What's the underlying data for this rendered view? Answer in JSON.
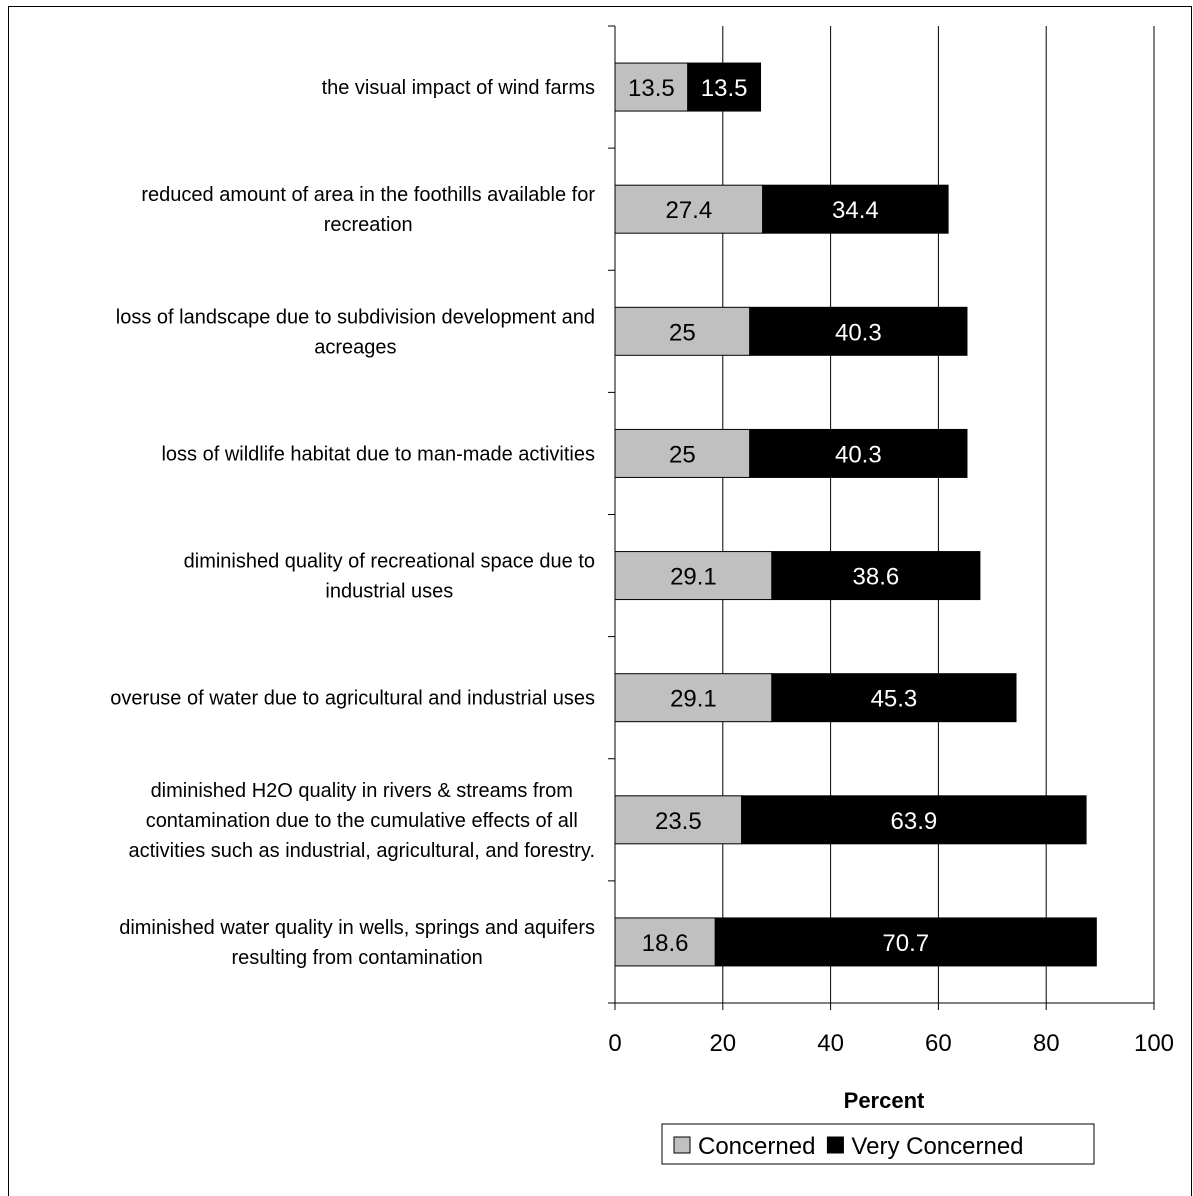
{
  "chart_data": {
    "type": "bar",
    "orientation": "horizontal",
    "stacked": true,
    "categories": [
      [
        "the visual impact of wind farms"
      ],
      [
        "reduced amount of area in the foothills available for",
        "recreation"
      ],
      [
        "loss of landscape due to subdivision development and",
        "acreages"
      ],
      [
        "loss of wildlife habitat due to man-made activities"
      ],
      [
        "diminished quality of recreational space due to",
        "industrial uses"
      ],
      [
        "overuse of water due to agricultural and industrial uses"
      ],
      [
        "diminished H2O quality in rivers & streams from",
        "contamination due to the cumulative effects of all",
        "activities such as industrial, agricultural, and forestry."
      ],
      [
        "diminished water quality in wells, springs and aquifers",
        "resulting from contamination"
      ]
    ],
    "series": [
      {
        "name": "Concerned",
        "color": "#c0c0c0",
        "label_color": "#000000",
        "values": [
          13.5,
          27.4,
          25,
          25,
          29.1,
          29.1,
          23.5,
          18.6
        ]
      },
      {
        "name": "Very Concerned",
        "color": "#000000",
        "label_color": "#ffffff",
        "values": [
          13.5,
          34.4,
          40.3,
          40.3,
          38.6,
          45.3,
          63.9,
          70.7
        ]
      }
    ],
    "xlabel": "Percent",
    "xlim": [
      0,
      100
    ],
    "xticks": [
      "0",
      "20",
      "40",
      "60",
      "80",
      "100"
    ],
    "grid": "vertical major gridlines",
    "legend": "bottom"
  }
}
